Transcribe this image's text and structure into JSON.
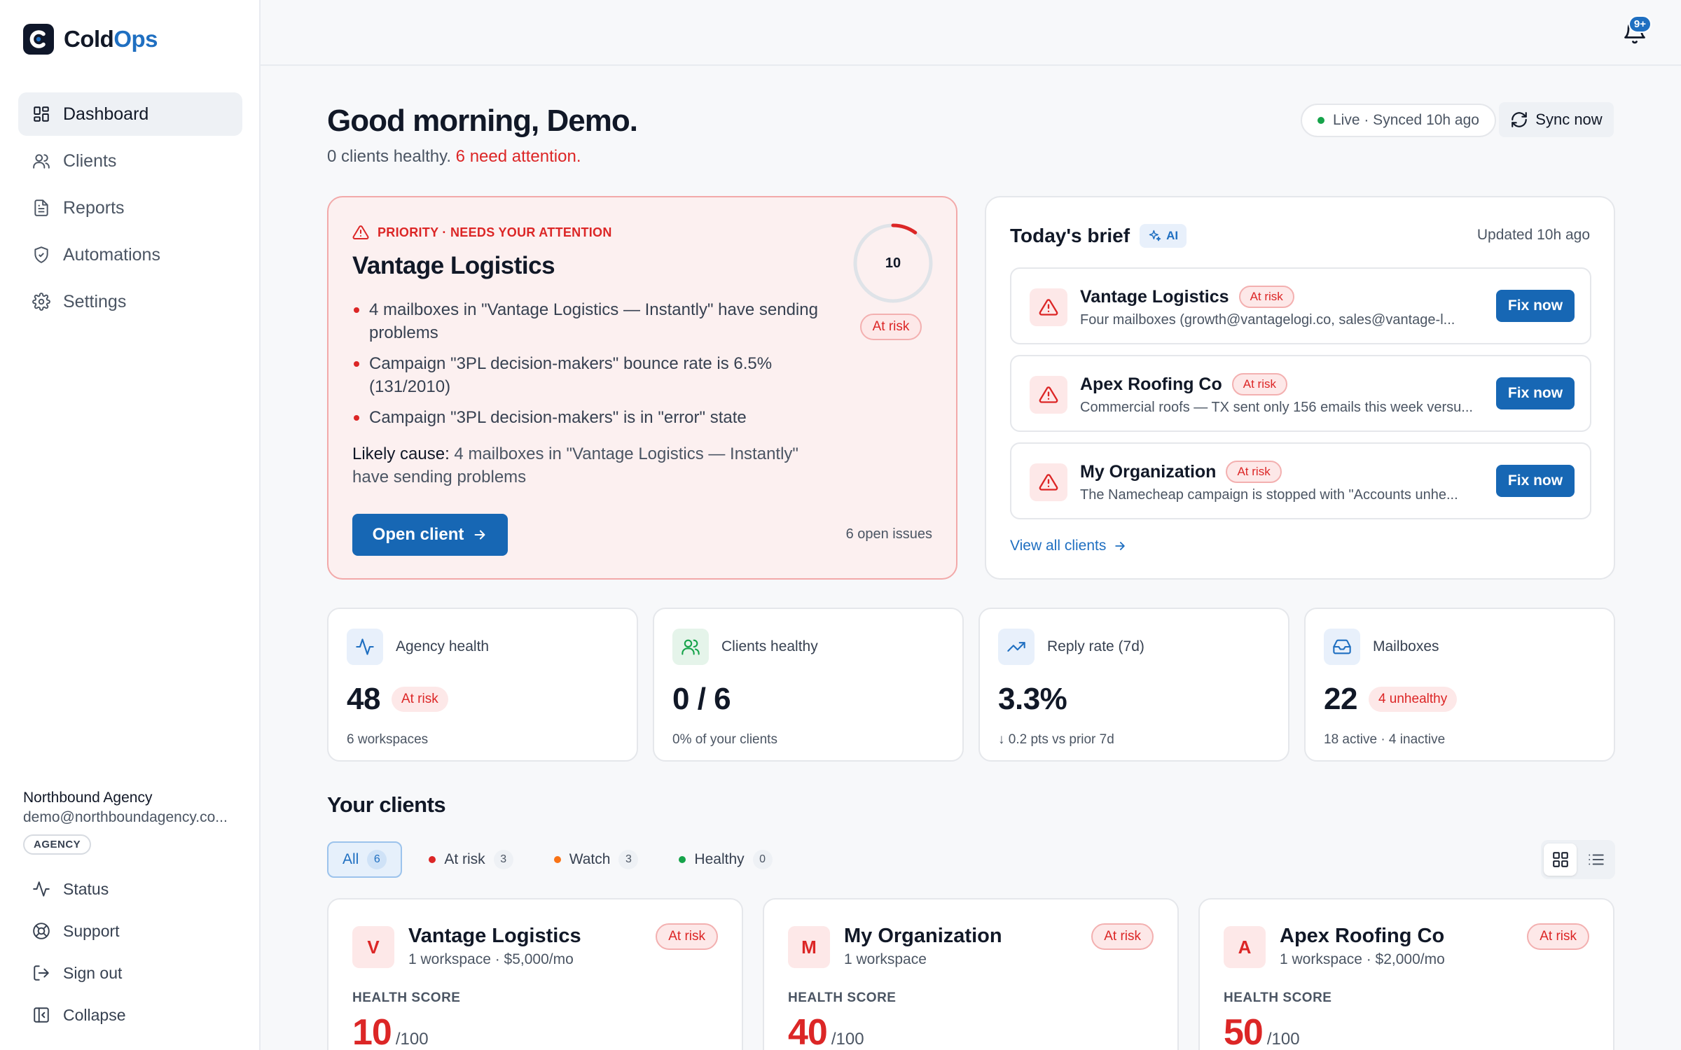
{
  "app": {
    "name_part1": "Cold",
    "name_part2": "Ops"
  },
  "sidebar": {
    "nav": [
      {
        "label": "Dashboard",
        "icon": "dashboard-icon",
        "active": true
      },
      {
        "label": "Clients",
        "icon": "users-icon"
      },
      {
        "label": "Reports",
        "icon": "file-text-icon"
      },
      {
        "label": "Automations",
        "icon": "shield-icon"
      },
      {
        "label": "Settings",
        "icon": "gear-icon"
      }
    ],
    "org_name": "Northbound Agency",
    "org_email": "demo@northboundagency.co...",
    "org_tag": "AGENCY",
    "footer": [
      {
        "label": "Status",
        "icon": "activity-icon"
      },
      {
        "label": "Support",
        "icon": "lifebuoy-icon"
      },
      {
        "label": "Sign out",
        "icon": "sign-out-icon"
      },
      {
        "label": "Collapse",
        "icon": "collapse-icon"
      }
    ]
  },
  "topbar": {
    "notification_count": "9+"
  },
  "header": {
    "greeting": "Good morning, Demo.",
    "summary_healthy": "0 clients healthy.",
    "summary_attention": "6 need attention.",
    "live_status": "Live · Synced 10h ago",
    "sync_label": "Sync now"
  },
  "priority": {
    "label": "PRIORITY · NEEDS YOUR ATTENTION",
    "client": "Vantage Logistics",
    "issues": [
      "4 mailboxes in \"Vantage Logistics — Instantly\" have sending problems",
      "Campaign \"3PL decision-makers\" bounce rate is 6.5% (131/2010)",
      "Campaign \"3PL decision-makers\" is in \"error\" state"
    ],
    "cause_label": "Likely cause:",
    "cause_text": "4 mailboxes in \"Vantage Logistics — Instantly\" have sending problems",
    "score": 10,
    "score_max": 100,
    "status": "At risk",
    "open_button": "Open client",
    "open_issues": "6 open issues"
  },
  "brief": {
    "title": "Today's brief",
    "ai_label": "AI",
    "updated": "Updated 10h ago",
    "items": [
      {
        "client": "Vantage Logistics",
        "status": "At risk",
        "desc": "Four mailboxes (growth@vantagelogi.co, sales@vantage-l...",
        "action": "Fix now"
      },
      {
        "client": "Apex Roofing Co",
        "status": "At risk",
        "desc": "Commercial roofs — TX sent only 156 emails this week versu...",
        "action": "Fix now"
      },
      {
        "client": "My Organization",
        "status": "At risk",
        "desc": "The Namecheap campaign is stopped with \"Accounts unhe...",
        "action": "Fix now"
      }
    ],
    "view_all": "View all clients"
  },
  "stats": [
    {
      "label": "Agency health",
      "value": "48",
      "badge": "At risk",
      "sub": "6 workspaces",
      "icon": "activity-icon"
    },
    {
      "label": "Clients healthy",
      "value": "0 / 6",
      "badge": "",
      "sub": "0% of your clients",
      "icon": "users-icon"
    },
    {
      "label": "Reply rate (7d)",
      "value": "3.3%",
      "badge": "",
      "sub": "↓ 0.2 pts vs prior 7d",
      "icon": "trending-up-icon"
    },
    {
      "label": "Mailboxes",
      "value": "22",
      "badge": "4 unhealthy",
      "sub": "18 active · 4 inactive",
      "icon": "inbox-icon"
    }
  ],
  "clients_section": {
    "title": "Your clients",
    "filters": [
      {
        "label": "All",
        "count": "6",
        "active": true,
        "dot": ""
      },
      {
        "label": "At risk",
        "count": "3",
        "dot": "#dc2626"
      },
      {
        "label": "Watch",
        "count": "3",
        "dot": "#f97316"
      },
      {
        "label": "Healthy",
        "count": "0",
        "dot": "#16a34a"
      }
    ],
    "cards": [
      {
        "initial": "V",
        "name": "Vantage Logistics",
        "meta": "1 workspace · $5,000/mo",
        "status": "At risk",
        "health_label": "HEALTH SCORE",
        "score": "10",
        "max": "/100"
      },
      {
        "initial": "M",
        "name": "My Organization",
        "meta": "1 workspace",
        "status": "At risk",
        "health_label": "HEALTH SCORE",
        "score": "40",
        "max": "/100"
      },
      {
        "initial": "A",
        "name": "Apex Roofing Co",
        "meta": "1 workspace · $2,000/mo",
        "status": "At risk",
        "health_label": "HEALTH SCORE",
        "score": "50",
        "max": "/100"
      }
    ]
  },
  "colors": {
    "accent": "#1767b4",
    "danger": "#dc2626",
    "healthy": "#16a34a",
    "watch": "#f97316"
  }
}
